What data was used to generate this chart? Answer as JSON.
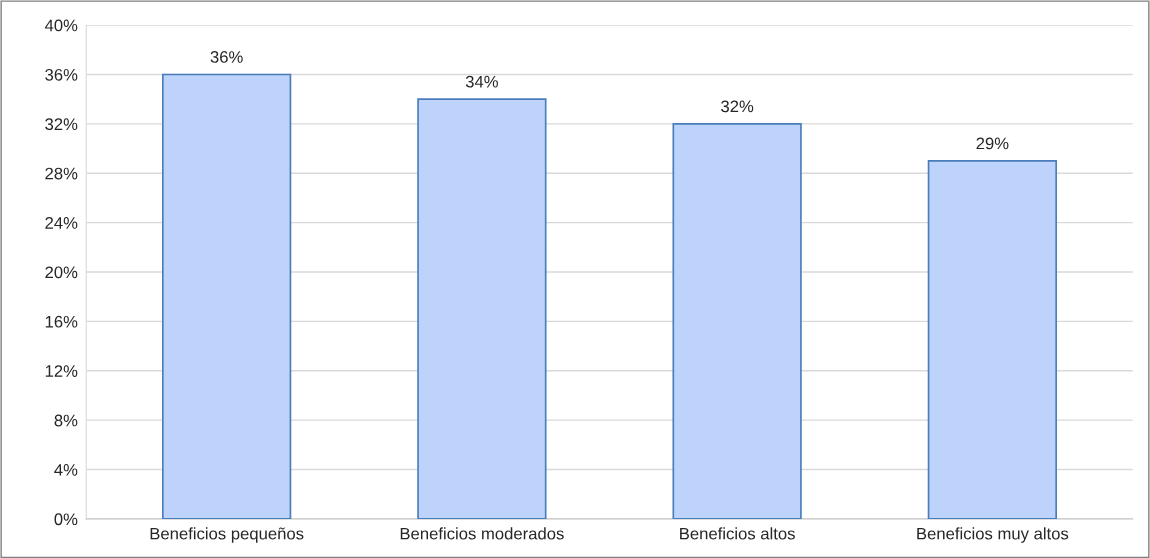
{
  "chart_data": {
    "type": "bar",
    "categories": [
      "Beneficios pequeños",
      "Beneficios moderados",
      "Beneficios altos",
      "Beneficios muy altos"
    ],
    "values": [
      36,
      34,
      32,
      29
    ],
    "value_labels": [
      "36%",
      "34%",
      "32%",
      "29%"
    ],
    "color": "#bdd3fb",
    "ylim": [
      0,
      40
    ],
    "yticks": [
      {
        "value": 0,
        "label": "0%"
      },
      {
        "value": 4,
        "label": "4%"
      },
      {
        "value": 8,
        "label": "8%"
      },
      {
        "value": 12,
        "label": "12%"
      },
      {
        "value": 16,
        "label": "16%"
      },
      {
        "value": 20,
        "label": "20%"
      },
      {
        "value": 24,
        "label": "24%"
      },
      {
        "value": 28,
        "label": "28%"
      },
      {
        "value": 32,
        "label": "32%"
      },
      {
        "value": 36,
        "label": "36%"
      },
      {
        "value": 40,
        "label": "40%"
      }
    ],
    "grid": "y"
  }
}
